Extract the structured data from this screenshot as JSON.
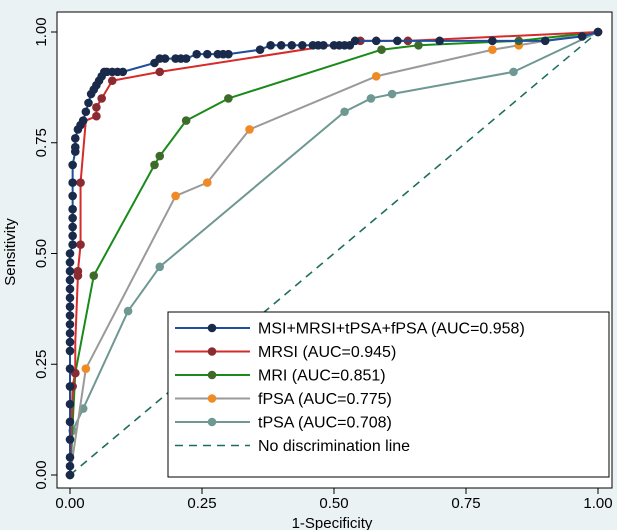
{
  "chart_data": {
    "type": "line",
    "title": "",
    "xlabel": "1-Specificity",
    "ylabel": "Sensitivity",
    "xlim": [
      0,
      1
    ],
    "ylim": [
      0,
      1
    ],
    "x_ticks": [
      "0.00",
      "0.25",
      "0.50",
      "0.75",
      "1.00"
    ],
    "y_ticks": [
      "0.00",
      "0.25",
      "0.50",
      "0.75",
      "1.00"
    ],
    "grid": false,
    "legend_position": "bottom-right",
    "series": [
      {
        "name": "MSI+MRSI+tPSA+fPSA (AUC=0.958)",
        "color": "#1f4e9c",
        "marker_color": "#1a2a4a",
        "x": [
          0.0,
          0.0,
          0.0,
          0.0,
          0.0,
          0.0,
          0.0,
          0.0,
          0.0,
          0.0,
          0.0,
          0.0,
          0.0,
          0.0,
          0.0,
          0.0,
          0.0,
          0.0,
          0.0,
          0.0,
          0.005,
          0.005,
          0.005,
          0.005,
          0.005,
          0.005,
          0.005,
          0.005,
          0.01,
          0.01,
          0.01,
          0.015,
          0.02,
          0.025,
          0.03,
          0.035,
          0.04,
          0.045,
          0.05,
          0.055,
          0.06,
          0.065,
          0.07,
          0.08,
          0.09,
          0.1,
          0.16,
          0.17,
          0.18,
          0.2,
          0.21,
          0.22,
          0.24,
          0.26,
          0.28,
          0.29,
          0.3,
          0.36,
          0.38,
          0.4,
          0.42,
          0.44,
          0.46,
          0.47,
          0.48,
          0.5,
          0.51,
          0.52,
          0.53,
          0.54,
          0.58,
          0.62,
          0.7,
          0.8,
          0.9,
          0.97,
          1.0
        ],
        "y": [
          0.0,
          0.02,
          0.04,
          0.08,
          0.12,
          0.16,
          0.2,
          0.24,
          0.28,
          0.3,
          0.32,
          0.34,
          0.36,
          0.38,
          0.4,
          0.42,
          0.44,
          0.46,
          0.48,
          0.5,
          0.52,
          0.54,
          0.56,
          0.58,
          0.6,
          0.63,
          0.66,
          0.7,
          0.73,
          0.74,
          0.76,
          0.78,
          0.79,
          0.8,
          0.82,
          0.84,
          0.86,
          0.87,
          0.88,
          0.89,
          0.9,
          0.91,
          0.91,
          0.91,
          0.91,
          0.91,
          0.93,
          0.94,
          0.94,
          0.94,
          0.94,
          0.94,
          0.95,
          0.95,
          0.95,
          0.95,
          0.95,
          0.96,
          0.97,
          0.97,
          0.97,
          0.97,
          0.97,
          0.97,
          0.97,
          0.97,
          0.97,
          0.97,
          0.97,
          0.98,
          0.98,
          0.98,
          0.98,
          0.98,
          0.98,
          0.99,
          1.0
        ]
      },
      {
        "name": "MRSI (AUC=0.945)",
        "color": "#d62b2b",
        "marker_color": "#8b2a30",
        "x": [
          0.0,
          0.005,
          0.01,
          0.01,
          0.015,
          0.015,
          0.02,
          0.02,
          0.03,
          0.05,
          0.05,
          0.06,
          0.08,
          0.17,
          0.55,
          0.64,
          1.0
        ],
        "y": [
          0.0,
          0.2,
          0.23,
          0.3,
          0.45,
          0.46,
          0.52,
          0.66,
          0.8,
          0.81,
          0.83,
          0.85,
          0.89,
          0.91,
          0.98,
          0.98,
          1.0
        ],
        "marked_points": [
          [
            0.005,
            0.2
          ],
          [
            0.01,
            0.23
          ],
          [
            0.015,
            0.45
          ],
          [
            0.015,
            0.46
          ],
          [
            0.02,
            0.52
          ],
          [
            0.02,
            0.66
          ],
          [
            0.05,
            0.81
          ],
          [
            0.05,
            0.83
          ],
          [
            0.06,
            0.85
          ],
          [
            0.08,
            0.89
          ],
          [
            0.17,
            0.91
          ],
          [
            0.55,
            0.98
          ],
          [
            0.64,
            0.98
          ],
          [
            1.0,
            1.0
          ]
        ]
      },
      {
        "name": "MRI (AUC=0.851)",
        "color": "#1a8a1a",
        "marker_color": "#3f6b2a",
        "x": [
          0.0,
          0.01,
          0.045,
          0.16,
          0.17,
          0.22,
          0.3,
          0.59,
          0.66,
          0.85,
          1.0
        ],
        "y": [
          0.0,
          0.23,
          0.45,
          0.7,
          0.72,
          0.8,
          0.85,
          0.96,
          0.97,
          0.98,
          1.0
        ]
      },
      {
        "name": "fPSA (AUC=0.775)",
        "color": "#9a9a9a",
        "marker_color": "#f08a24",
        "x": [
          0.0,
          0.03,
          0.2,
          0.26,
          0.34,
          0.58,
          0.8,
          0.85,
          1.0
        ],
        "y": [
          0.0,
          0.24,
          0.63,
          0.66,
          0.78,
          0.9,
          0.96,
          0.97,
          1.0
        ]
      },
      {
        "name": "tPSA (AUC=0.708)",
        "color": "#6f9893",
        "marker_color": "#6f9893",
        "x": [
          0.0,
          0.005,
          0.025,
          0.11,
          0.17,
          0.52,
          0.57,
          0.61,
          0.84,
          1.0
        ],
        "y": [
          0.0,
          0.1,
          0.15,
          0.37,
          0.47,
          0.82,
          0.85,
          0.86,
          0.91,
          1.0
        ]
      },
      {
        "name": "No discrimination line",
        "color": "#1f6f60",
        "dashed": true,
        "x": [
          0,
          1
        ],
        "y": [
          0,
          1
        ]
      }
    ]
  }
}
